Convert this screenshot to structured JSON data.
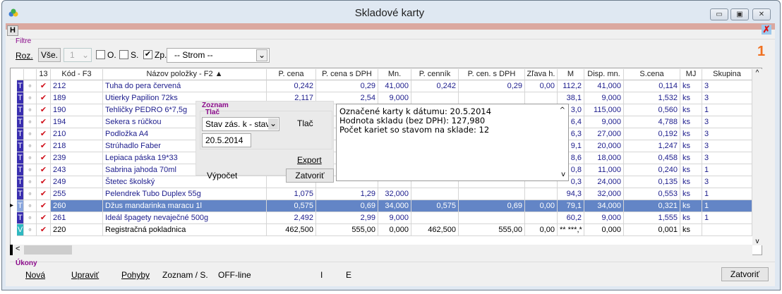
{
  "window": {
    "title": "Skladové karty",
    "help_button": "H",
    "minimize": "▭",
    "maximize": "▣",
    "close": "✕"
  },
  "filters": {
    "group_label": "Filtre",
    "roz": "Roz.",
    "vse": "Vše.",
    "level_value": "1",
    "o_label": "O.",
    "o_checked": false,
    "s_label": "S.",
    "s_checked": false,
    "zp_label": "Zp.",
    "zp_checked": true,
    "tree_value": "-- Strom --",
    "counter": "1"
  },
  "colors": {
    "type_t": "#3a2fb0",
    "type_v": "#2fb8c0",
    "selected": "#6385c6",
    "check": "#d0101a",
    "accent": "#f07020"
  },
  "grid": {
    "headers": [
      "",
      "",
      "13",
      "Kód - F3",
      "Názov položky - F2 ▲",
      "P. cena",
      "P. cena s DPH",
      "Mn.",
      "P. cenník",
      "P. cen. s DPH",
      "Zľava h.",
      "M",
      "Disp. mn.",
      "S.cena",
      "MJ",
      "Skupina"
    ],
    "rows": [
      {
        "type": "T",
        "code": "212",
        "name": "Tuha do pera červená",
        "pcena": "0,242",
        "pcenadph": "0,29",
        "mn": "41,000",
        "pcennik": "0,242",
        "pcendph": "0,29",
        "zlava": "0,00",
        "m": "112,2",
        "disp": "41,000",
        "scena": "0,114",
        "mj": "ks",
        "skupina": "3"
      },
      {
        "type": "T",
        "code": "189",
        "name": "Utierky Papilion 72ks",
        "pcena": "2,117",
        "pcenadph": "2,54",
        "mn": "9,000",
        "pcennik": "",
        "pcendph": "",
        "zlava": "",
        "m": "38,1",
        "disp": "9,000",
        "scena": "1,532",
        "mj": "ks",
        "skupina": "3"
      },
      {
        "type": "T",
        "code": "190",
        "name": "Tehličky PEDRO   6*7,5g",
        "pcena": "",
        "pcenadph": "",
        "mn": "",
        "pcennik": "",
        "pcendph": "",
        "zlava": "",
        "m": "3,0",
        "disp": "115,000",
        "scena": "0,560",
        "mj": "ks",
        "skupina": "1"
      },
      {
        "type": "T",
        "code": "194",
        "name": "Sekera s rúčkou",
        "pcena": "",
        "pcenadph": "",
        "mn": "",
        "pcennik": "",
        "pcendph": "",
        "zlava": "",
        "m": "6,4",
        "disp": "9,000",
        "scena": "4,788",
        "mj": "ks",
        "skupina": "3"
      },
      {
        "type": "T",
        "code": "210",
        "name": "Podložka A4",
        "pcena": "",
        "pcenadph": "",
        "mn": "",
        "pcennik": "",
        "pcendph": "",
        "zlava": "",
        "m": "6,3",
        "disp": "27,000",
        "scena": "0,192",
        "mj": "ks",
        "skupina": "3"
      },
      {
        "type": "T",
        "code": "218",
        "name": "Strúhadlo Faber",
        "pcena": "",
        "pcenadph": "",
        "mn": "",
        "pcennik": "",
        "pcendph": "",
        "zlava": "",
        "m": "9,1",
        "disp": "20,000",
        "scena": "1,247",
        "mj": "ks",
        "skupina": "3"
      },
      {
        "type": "T",
        "code": "239",
        "name": "Lepiaca páska 19*33",
        "pcena": "",
        "pcenadph": "",
        "mn": "",
        "pcennik": "",
        "pcendph": "",
        "zlava": "",
        "m": "8,6",
        "disp": "18,000",
        "scena": "0,458",
        "mj": "ks",
        "skupina": "3"
      },
      {
        "type": "T",
        "code": "243",
        "name": "Sabrina jahoda 70ml",
        "pcena": "",
        "pcenadph": "",
        "mn": "",
        "pcennik": "",
        "pcendph": "",
        "zlava": "",
        "m": "0,8",
        "disp": "11,000",
        "scena": "0,240",
        "mj": "ks",
        "skupina": "1"
      },
      {
        "type": "T",
        "code": "249",
        "name": "Štetec školský",
        "pcena": "",
        "pcenadph": "",
        "mn": "",
        "pcennik": "",
        "pcendph": "",
        "zlava": "",
        "m": "0,3",
        "disp": "24,000",
        "scena": "0,135",
        "mj": "ks",
        "skupina": "3"
      },
      {
        "type": "T",
        "code": "255",
        "name": "Pelendrek Tubo Duplex 55g",
        "pcena": "1,075",
        "pcenadph": "1,29",
        "mn": "32,000",
        "pcennik": "",
        "pcendph": "",
        "zlava": "",
        "m": "94,3",
        "disp": "32,000",
        "scena": "0,553",
        "mj": "ks",
        "skupina": "1"
      },
      {
        "type": "T",
        "code": "260",
        "name": "Džus mandarinka maracu 1l",
        "pcena": "0,575",
        "pcenadph": "0,69",
        "mn": "34,000",
        "pcennik": "0,575",
        "pcendph": "0,69",
        "zlava": "0,00",
        "m": "79,1",
        "disp": "34,000",
        "scena": "0,321",
        "mj": "ks",
        "skupina": "1",
        "selected": true
      },
      {
        "type": "T",
        "code": "261",
        "name": "Ideál špagety nevaječné 500g",
        "pcena": "2,492",
        "pcenadph": "2,99",
        "mn": "9,000",
        "pcennik": "",
        "pcendph": "",
        "zlava": "",
        "m": "60,2",
        "disp": "9,000",
        "scena": "1,555",
        "mj": "ks",
        "skupina": "1"
      },
      {
        "type": "V",
        "code": "220",
        "name": "Registračná pokladnica",
        "pcena": "462,500",
        "pcenadph": "555,00",
        "mn": "0,000",
        "pcennik": "462,500",
        "pcendph": "555,00",
        "zlava": "0,00",
        "m": "** ***,*",
        "disp": "0,000",
        "scena": "0,001",
        "mj": "ks",
        "skupina": ""
      }
    ]
  },
  "popup": {
    "group": "Zoznam",
    "subgroup": "Tlač",
    "report_value": "Stav zás. k - stav",
    "date_value": "20.5.2014",
    "print": "Tlač",
    "export": "Export",
    "calc": "Výpočet",
    "close": "Zatvoriť",
    "lines": [
      "Označené karty k dátumu: 20.5.2014",
      "Hodnota skladu (bez DPH): 127,980",
      "Počet kariet so stavom na sklade: 12"
    ]
  },
  "actions": {
    "group": "Úkony",
    "new": "Nová",
    "edit": "Upraviť",
    "moves": "Pohyby",
    "list": "Zoznam / S.",
    "offline": "OFF-line",
    "i": "I",
    "e": "E",
    "close": "Zatvoriť"
  }
}
